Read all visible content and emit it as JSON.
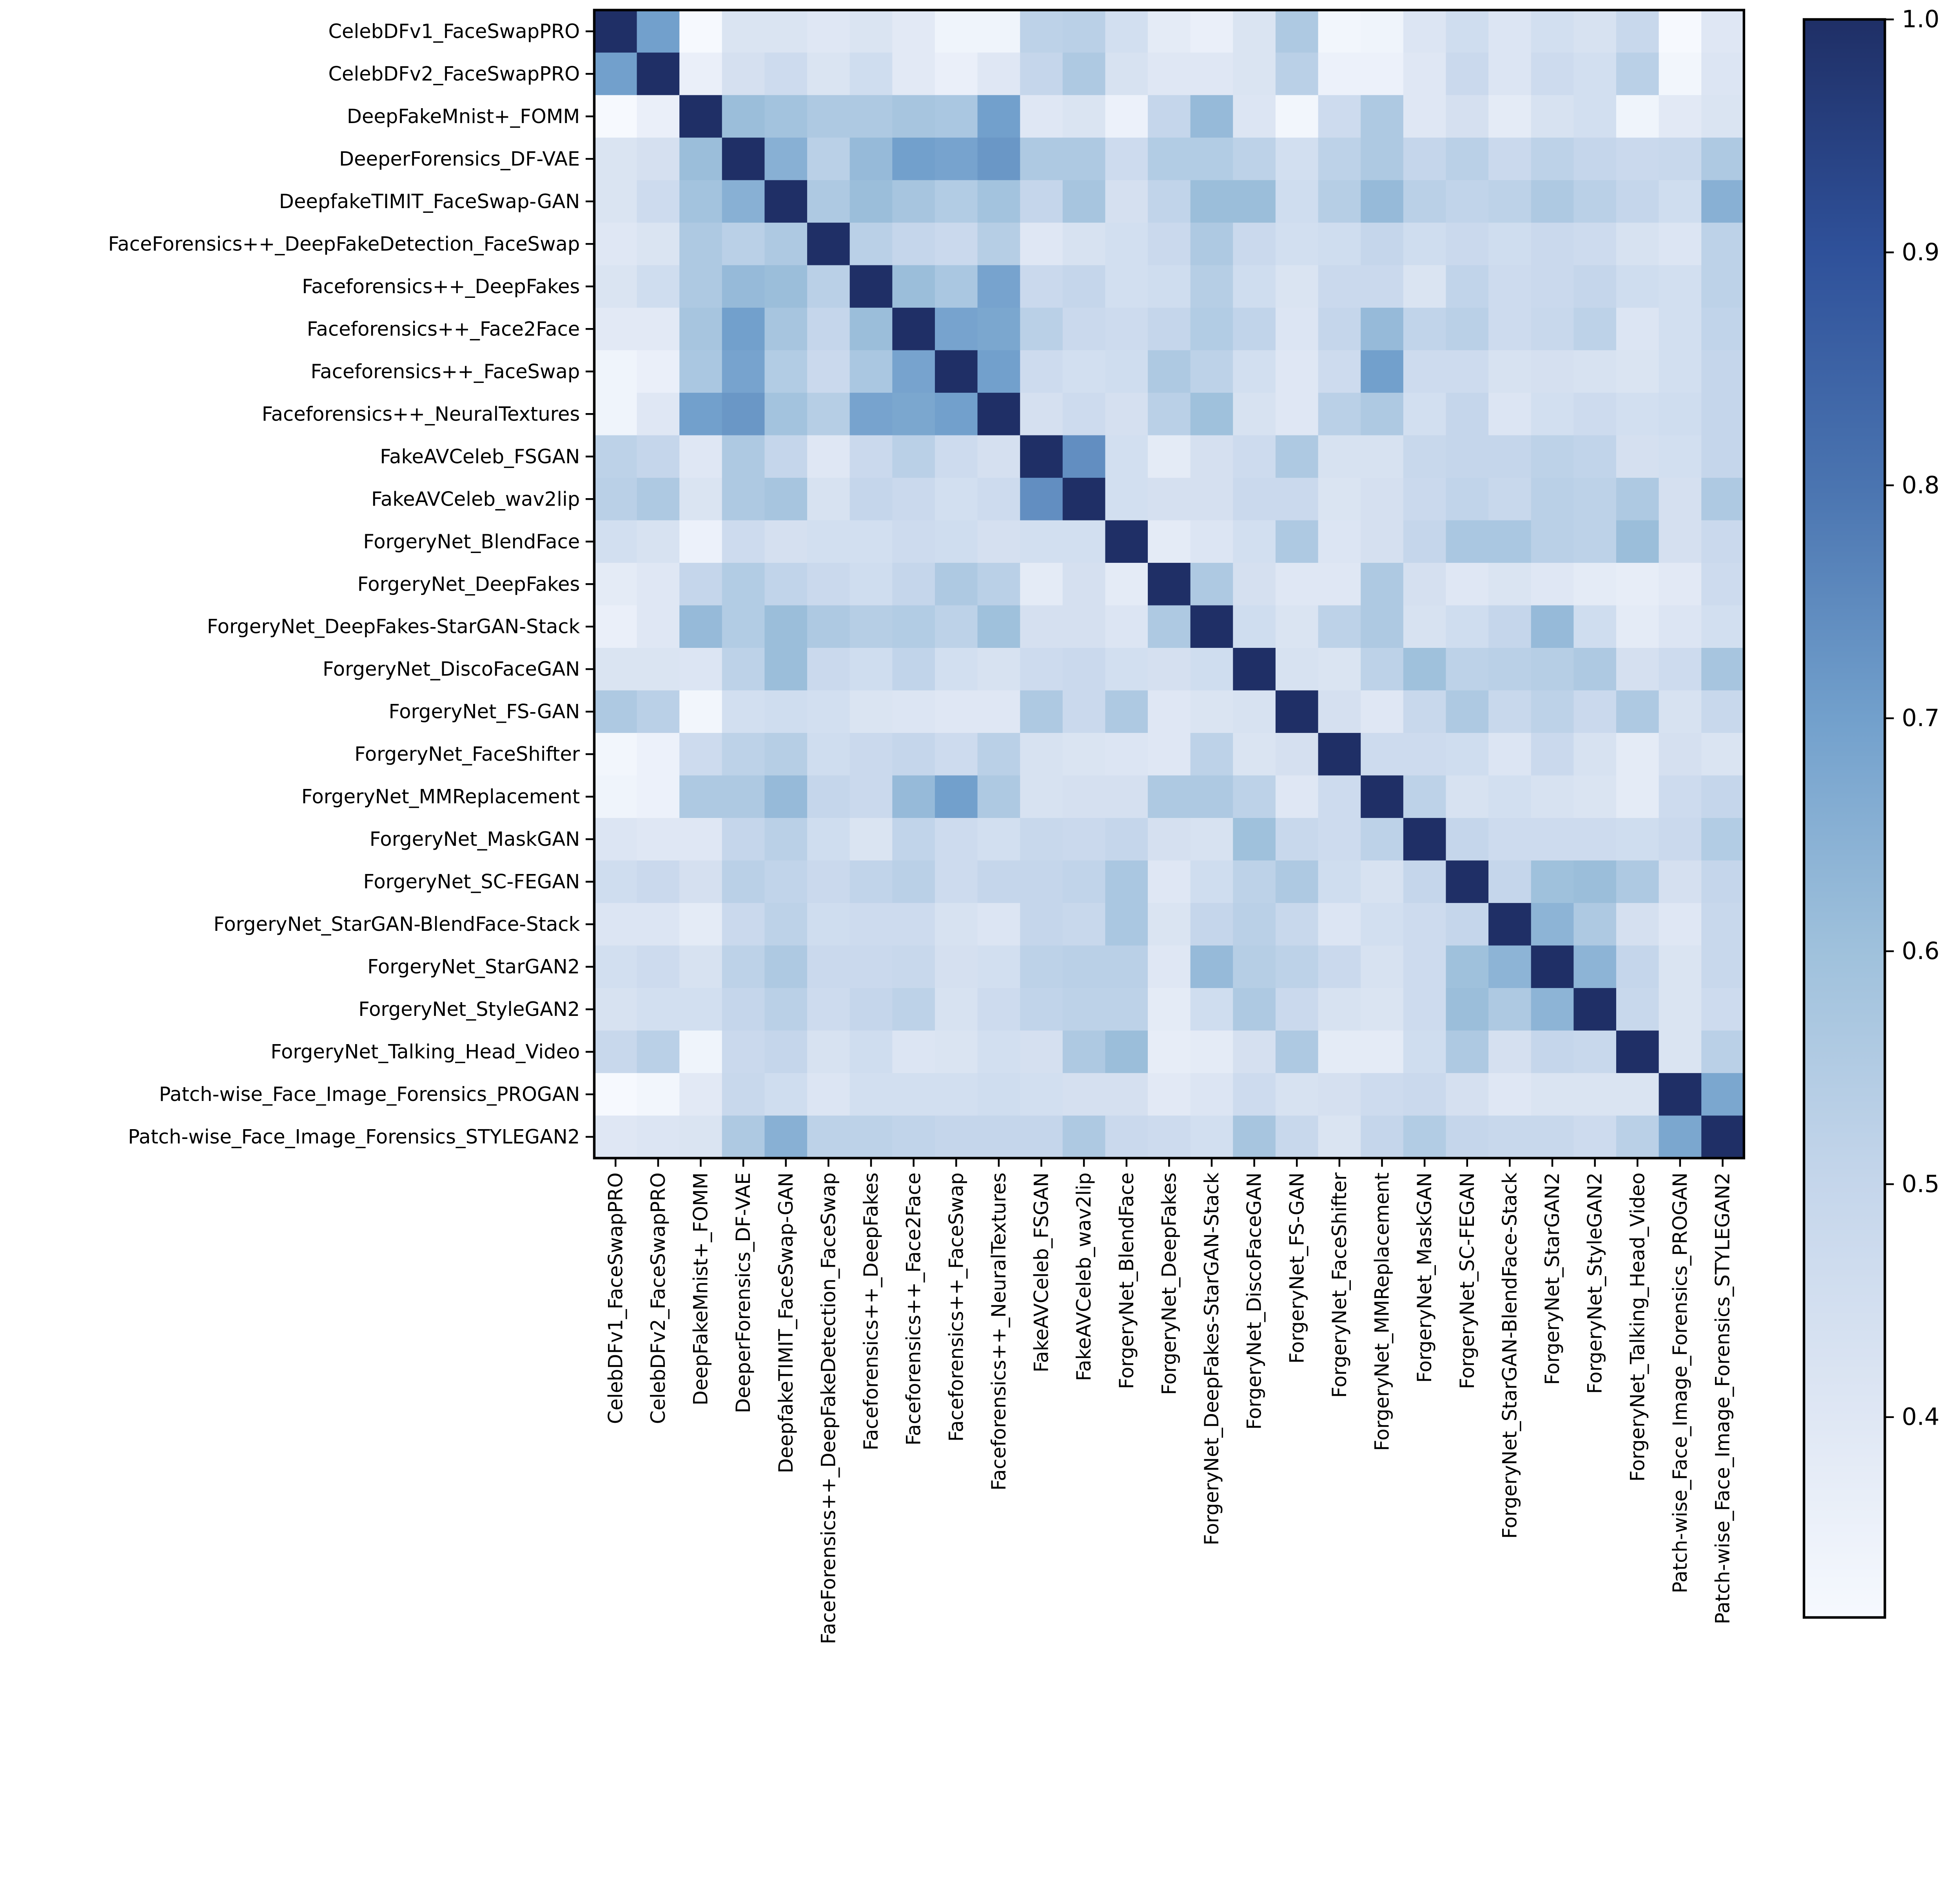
{
  "chart_data": {
    "type": "heatmap",
    "title": "",
    "xlabel": "",
    "ylabel": "",
    "symmetric": true,
    "labels": [
      "CelebDFv1_FaceSwapPRO",
      "CelebDFv2_FaceSwapPRO",
      "DeepFakeMnist+_FOMM",
      "DeeperForensics_DF-VAE",
      "DeepfakeTIMIT_FaceSwap-GAN",
      "FaceForensics++_DeepFakeDetection_FaceSwap",
      "Faceforensics++_DeepFakes",
      "Faceforensics++_Face2Face",
      "Faceforensics++_FaceSwap",
      "Faceforensics++_NeuralTextures",
      "FakeAVCeleb_FSGAN",
      "FakeAVCeleb_wav2lip",
      "ForgeryNet_BlendFace",
      "ForgeryNet_DeepFakes",
      "ForgeryNet_DeepFakes-StarGAN-Stack",
      "ForgeryNet_DiscoFaceGAN",
      "ForgeryNet_FS-GAN",
      "ForgeryNet_FaceShifter",
      "ForgeryNet_MMReplacement",
      "ForgeryNet_MaskGAN",
      "ForgeryNet_SC-FEGAN",
      "ForgeryNet_StarGAN-BlendFace-Stack",
      "ForgeryNet_StarGAN2",
      "ForgeryNet_StyleGAN2",
      "ForgeryNet_Talking_Head_Video",
      "Patch-wise_Face_Image_Forensics_PROGAN",
      "Patch-wise_Face_Image_Forensics_STYLEGAN2"
    ],
    "upper_triangle_rows": [
      [
        1,
        0.7,
        0.31,
        0.42,
        0.42,
        0.4,
        0.42,
        0.39,
        0.34,
        0.34,
        0.52,
        0.53,
        0.45,
        0.38,
        0.36,
        0.42,
        0.56,
        0.33,
        0.34,
        0.41,
        0.46,
        0.41,
        0.45,
        0.43,
        0.49,
        0.31,
        0.4
      ],
      [
        1,
        0.36,
        0.44,
        0.47,
        0.42,
        0.46,
        0.39,
        0.36,
        0.4,
        0.5,
        0.56,
        0.43,
        0.4,
        0.4,
        0.42,
        0.53,
        0.35,
        0.35,
        0.4,
        0.48,
        0.41,
        0.47,
        0.45,
        0.53,
        0.33,
        0.41
      ],
      [
        1,
        0.61,
        0.59,
        0.56,
        0.56,
        0.58,
        0.57,
        0.7,
        0.4,
        0.42,
        0.35,
        0.5,
        0.62,
        0.41,
        0.33,
        0.47,
        0.56,
        0.4,
        0.44,
        0.38,
        0.43,
        0.45,
        0.34,
        0.39,
        0.42
      ],
      [
        1,
        0.65,
        0.53,
        0.62,
        0.7,
        0.69,
        0.72,
        0.56,
        0.56,
        0.47,
        0.55,
        0.55,
        0.52,
        0.45,
        0.52,
        0.56,
        0.5,
        0.53,
        0.48,
        0.52,
        0.5,
        0.48,
        0.49,
        0.56
      ],
      [
        1,
        0.56,
        0.61,
        0.58,
        0.55,
        0.59,
        0.5,
        0.58,
        0.44,
        0.51,
        0.61,
        0.61,
        0.46,
        0.54,
        0.62,
        0.53,
        0.51,
        0.52,
        0.56,
        0.53,
        0.5,
        0.46,
        0.65
      ],
      [
        1,
        0.53,
        0.5,
        0.48,
        0.54,
        0.4,
        0.43,
        0.45,
        0.48,
        0.56,
        0.48,
        0.45,
        0.46,
        0.5,
        0.46,
        0.48,
        0.46,
        0.48,
        0.47,
        0.43,
        0.41,
        0.52
      ],
      [
        1,
        0.61,
        0.57,
        0.69,
        0.48,
        0.5,
        0.45,
        0.46,
        0.54,
        0.46,
        0.42,
        0.48,
        0.48,
        0.42,
        0.51,
        0.47,
        0.48,
        0.5,
        0.46,
        0.45,
        0.52
      ],
      [
        1,
        0.69,
        0.68,
        0.53,
        0.48,
        0.47,
        0.5,
        0.55,
        0.51,
        0.41,
        0.5,
        0.62,
        0.51,
        0.53,
        0.47,
        0.49,
        0.52,
        0.41,
        0.45,
        0.51
      ],
      [
        1,
        0.7,
        0.47,
        0.45,
        0.46,
        0.56,
        0.52,
        0.45,
        0.4,
        0.47,
        0.7,
        0.47,
        0.47,
        0.43,
        0.44,
        0.43,
        0.42,
        0.45,
        0.5
      ],
      [
        1,
        0.44,
        0.47,
        0.44,
        0.53,
        0.6,
        0.43,
        0.4,
        0.53,
        0.56,
        0.45,
        0.5,
        0.41,
        0.45,
        0.47,
        0.45,
        0.46,
        0.5
      ],
      [
        1,
        0.74,
        0.45,
        0.38,
        0.44,
        0.47,
        0.56,
        0.43,
        0.43,
        0.49,
        0.5,
        0.5,
        0.52,
        0.51,
        0.44,
        0.45,
        0.5
      ],
      [
        1,
        0.45,
        0.44,
        0.44,
        0.48,
        0.48,
        0.42,
        0.44,
        0.48,
        0.51,
        0.49,
        0.53,
        0.52,
        0.56,
        0.44,
        0.56
      ],
      [
        1,
        0.38,
        0.41,
        0.45,
        0.56,
        0.41,
        0.44,
        0.5,
        0.57,
        0.57,
        0.53,
        0.52,
        0.61,
        0.44,
        0.48
      ],
      [
        1,
        0.56,
        0.44,
        0.4,
        0.4,
        0.56,
        0.44,
        0.4,
        0.42,
        0.4,
        0.38,
        0.37,
        0.39,
        0.47
      ],
      [
        1,
        0.46,
        0.42,
        0.52,
        0.56,
        0.43,
        0.46,
        0.5,
        0.62,
        0.46,
        0.38,
        0.41,
        0.45
      ],
      [
        1,
        0.43,
        0.42,
        0.52,
        0.6,
        0.52,
        0.53,
        0.54,
        0.56,
        0.44,
        0.47,
        0.58
      ],
      [
        1,
        0.44,
        0.4,
        0.49,
        0.56,
        0.49,
        0.52,
        0.48,
        0.56,
        0.43,
        0.49
      ],
      [
        1,
        0.47,
        0.47,
        0.46,
        0.41,
        0.48,
        0.43,
        0.38,
        0.44,
        0.42
      ],
      [
        1,
        0.52,
        0.43,
        0.45,
        0.43,
        0.42,
        0.38,
        0.47,
        0.5
      ],
      [
        1,
        0.5,
        0.47,
        0.47,
        0.47,
        0.46,
        0.48,
        0.55
      ],
      [
        1,
        0.5,
        0.6,
        0.61,
        0.56,
        0.44,
        0.5
      ],
      [
        1,
        0.64,
        0.56,
        0.44,
        0.4,
        0.49
      ],
      [
        1,
        0.64,
        0.5,
        0.42,
        0.49
      ],
      [
        1,
        0.49,
        0.42,
        0.47
      ],
      [
        1,
        0.42,
        0.53
      ],
      [
        1,
        0.68
      ],
      [
        1
      ]
    ],
    "colorbar": {
      "range": [
        0.314,
        1.0
      ],
      "ticks": [
        "0.4",
        "0.5",
        "0.6",
        "0.7",
        "0.8",
        "0.9",
        "1.0"
      ],
      "colormap": [
        {
          "v": 0.314,
          "color": "#f6f9fe"
        },
        {
          "v": 0.4,
          "color": "#dfe7f4"
        },
        {
          "v": 0.5,
          "color": "#c5d6eb"
        },
        {
          "v": 0.6,
          "color": "#9fc1dc"
        },
        {
          "v": 0.7,
          "color": "#72a0cc"
        },
        {
          "v": 0.8,
          "color": "#4a74b0"
        },
        {
          "v": 0.9,
          "color": "#2f519a"
        },
        {
          "v": 1.0,
          "color": "#1f2f66"
        }
      ]
    },
    "grid": false,
    "legend": "colorbar-right"
  }
}
